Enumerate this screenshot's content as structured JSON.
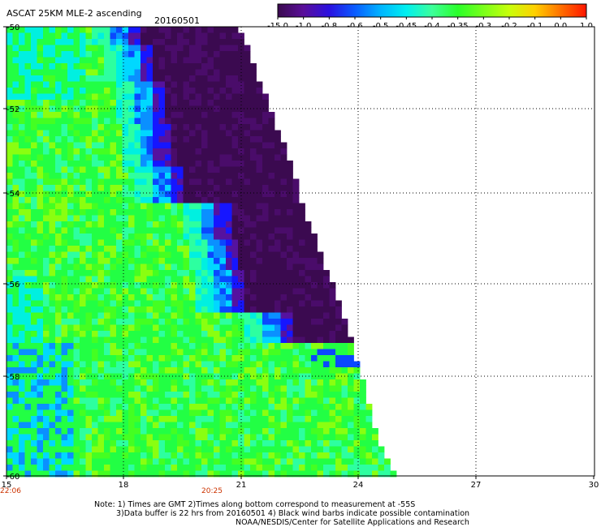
{
  "header": {
    "title": "ASCAT 25KM MLE-2 ascending",
    "date": "20160501"
  },
  "colorbar": {
    "ticks": [
      "-15.0",
      "-1.0",
      "-0.8",
      "-0.6",
      "-0.5",
      "-0.45",
      "-0.4",
      "-0.35",
      "-0.3",
      "-0.2",
      "-0.1",
      "0.0",
      "1.0"
    ],
    "colors": [
      "#3a0a4e",
      "#5a0f9a",
      "#2a10e0",
      "#0a5cff",
      "#00b4ff",
      "#00f0f0",
      "#3cff9a",
      "#2aff2a",
      "#7aff1a",
      "#c8ff0a",
      "#ffd000",
      "#ff7000",
      "#ff1500"
    ]
  },
  "map": {
    "lon_ticks": [
      "15",
      "18",
      "21",
      "24",
      "27",
      "30"
    ],
    "lat_ticks": [
      "-50",
      "-52",
      "-54",
      "-56",
      "-58",
      "-60"
    ],
    "time_labels": [
      "22:06",
      "20:25"
    ]
  },
  "notes": {
    "line1": "Note: 1) Times are GMT 2)Times along bottom correspond to measurement at -55S",
    "line2": "3)Data buffer is 22 hrs from 20160501 4) Black wind barbs indicate possible contamination",
    "line3": "NOAA/NESDIS/Center for Satellite Applications and Research"
  }
}
